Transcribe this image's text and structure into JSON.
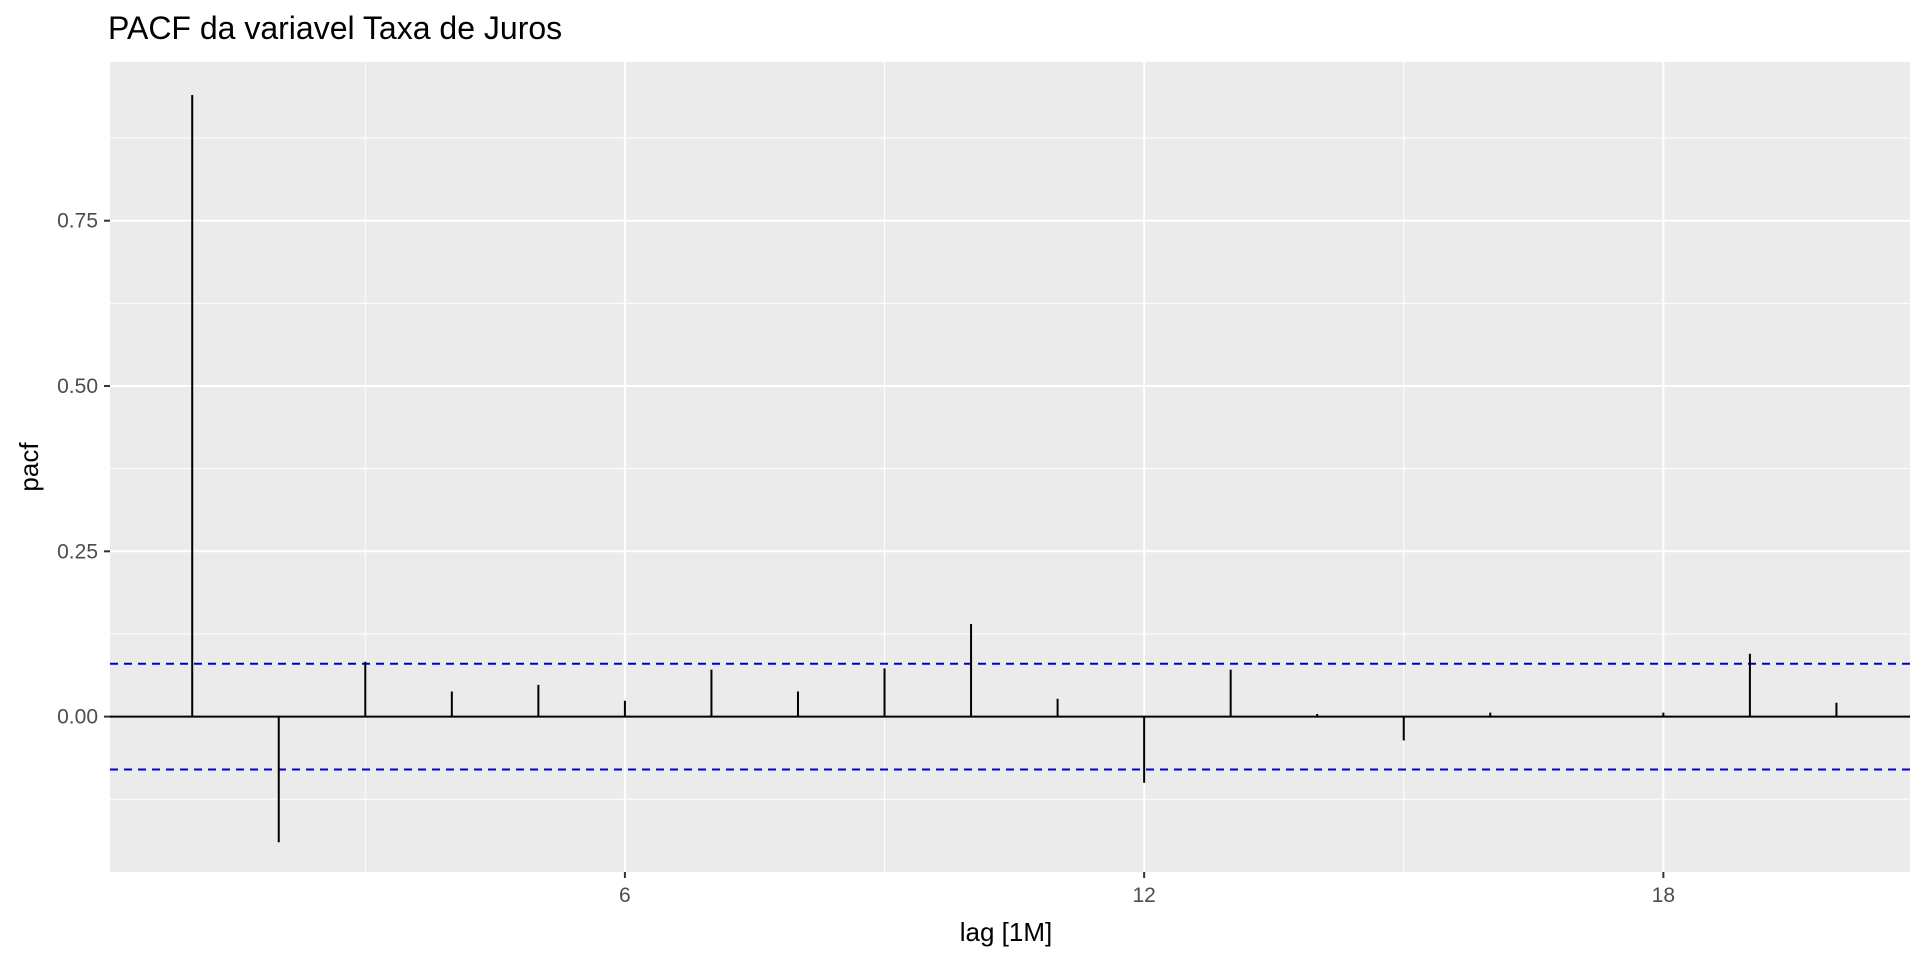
{
  "chart_data": {
    "type": "bar",
    "title": "PACF da variavel Taxa de Juros",
    "xlabel": "lag [1M]",
    "ylabel": "pacf",
    "x": [
      1,
      2,
      3,
      4,
      5,
      6,
      7,
      8,
      9,
      10,
      11,
      12,
      13,
      14,
      15,
      16,
      17,
      18,
      19,
      20
    ],
    "values": [
      0.94,
      -0.19,
      0.083,
      0.038,
      0.048,
      0.024,
      0.071,
      0.038,
      0.073,
      0.14,
      0.027,
      -0.1,
      0.071,
      0.004,
      -0.036,
      0.006,
      0.0,
      0.006,
      0.095,
      0.021
    ],
    "ci": [
      -0.08,
      0.08
    ],
    "xlim": [
      0.05,
      20.85
    ],
    "ylim": [
      -0.235,
      0.99
    ],
    "xticks": [
      6,
      12,
      18
    ],
    "yticks": [
      0.0,
      0.25,
      0.5,
      0.75
    ],
    "ytick_labels": [
      "0.00",
      "0.25",
      "0.50",
      "0.75"
    ],
    "grid": true,
    "colors": {
      "panel": "#ebebeb",
      "grid": "#ffffff",
      "bars": "#000000",
      "ci_lines": "#0000cc"
    }
  }
}
